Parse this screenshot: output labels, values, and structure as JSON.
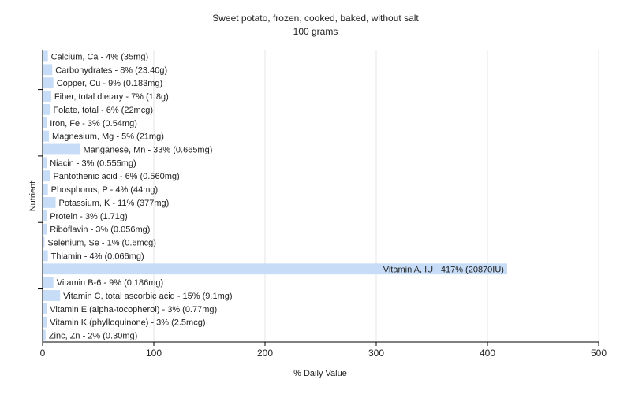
{
  "chart_data": {
    "type": "bar",
    "orientation": "horizontal",
    "title": "Sweet potato, frozen, cooked, baked, without salt",
    "subtitle": "100 grams",
    "xlabel": "% Daily Value",
    "ylabel": "Nutrient",
    "xlim": [
      0,
      500
    ],
    "xticks": [
      "0",
      "100",
      "200",
      "300",
      "400",
      "500"
    ],
    "grid": true,
    "legend": "none",
    "bar_color": "#c6dcf7",
    "categories": [
      "Calcium, Ca",
      "Carbohydrates",
      "Copper, Cu",
      "Fiber, total dietary",
      "Folate, total",
      "Iron, Fe",
      "Magnesium, Mg",
      "Manganese, Mn",
      "Niacin",
      "Pantothenic acid",
      "Phosphorus, P",
      "Potassium, K",
      "Protein",
      "Riboflavin",
      "Selenium, Se",
      "Thiamin",
      "Vitamin A, IU",
      "Vitamin B-6",
      "Vitamin C, total ascorbic acid",
      "Vitamin E (alpha-tocopherol)",
      "Vitamin K (phylloquinone)",
      "Zinc, Zn"
    ],
    "values": [
      4,
      8,
      9,
      7,
      6,
      3,
      5,
      33,
      3,
      6,
      4,
      11,
      3,
      3,
      1,
      4,
      417,
      9,
      15,
      3,
      3,
      2
    ],
    "labels": [
      "Calcium, Ca - 4% (35mg)",
      "Carbohydrates - 8% (23.40g)",
      "Copper, Cu - 9% (0.183mg)",
      "Fiber, total dietary - 7% (1.8g)",
      "Folate, total - 6% (22mcg)",
      "Iron, Fe - 3% (0.54mg)",
      "Magnesium, Mg - 5% (21mg)",
      "Manganese, Mn - 33% (0.665mg)",
      "Niacin - 3% (0.555mg)",
      "Pantothenic acid - 6% (0.560mg)",
      "Phosphorus, P - 4% (44mg)",
      "Potassium, K - 11% (377mg)",
      "Protein - 3% (1.71g)",
      "Riboflavin - 3% (0.056mg)",
      "Selenium, Se - 1% (0.6mcg)",
      "Thiamin - 4% (0.066mg)",
      "Vitamin A, IU - 417% (20870IU)",
      "Vitamin B-6 - 9% (0.186mg)",
      "Vitamin C, total ascorbic acid - 15% (9.1mg)",
      "Vitamin E (alpha-tocopherol) - 3% (0.77mg)",
      "Vitamin K (phylloquinone) - 3% (2.5mcg)",
      "Zinc, Zn - 2% (0.30mg)"
    ]
  }
}
